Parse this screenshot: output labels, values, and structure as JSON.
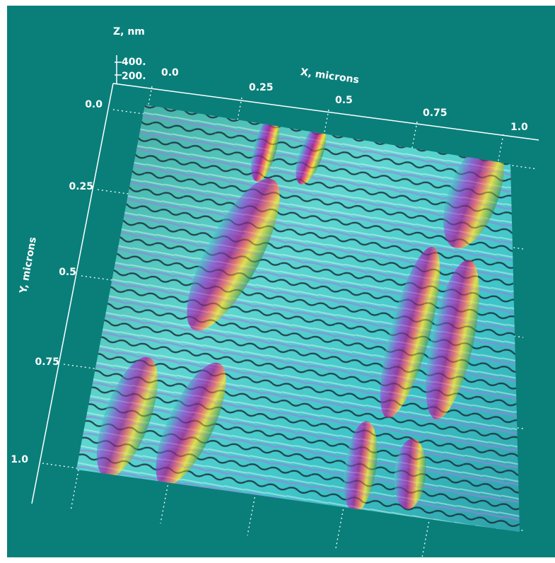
{
  "axes": {
    "z": {
      "title": "Z, nm",
      "ticks": [
        "400.",
        "200."
      ]
    },
    "x": {
      "title": "X, microns",
      "ticks": [
        "0.0",
        "0.25",
        "0.5",
        "0.75",
        "1.0"
      ]
    },
    "y": {
      "title": "Y, microns",
      "ticks": [
        "0.0",
        "0.25",
        "0.5",
        "0.75",
        "1.0"
      ]
    }
  }
}
